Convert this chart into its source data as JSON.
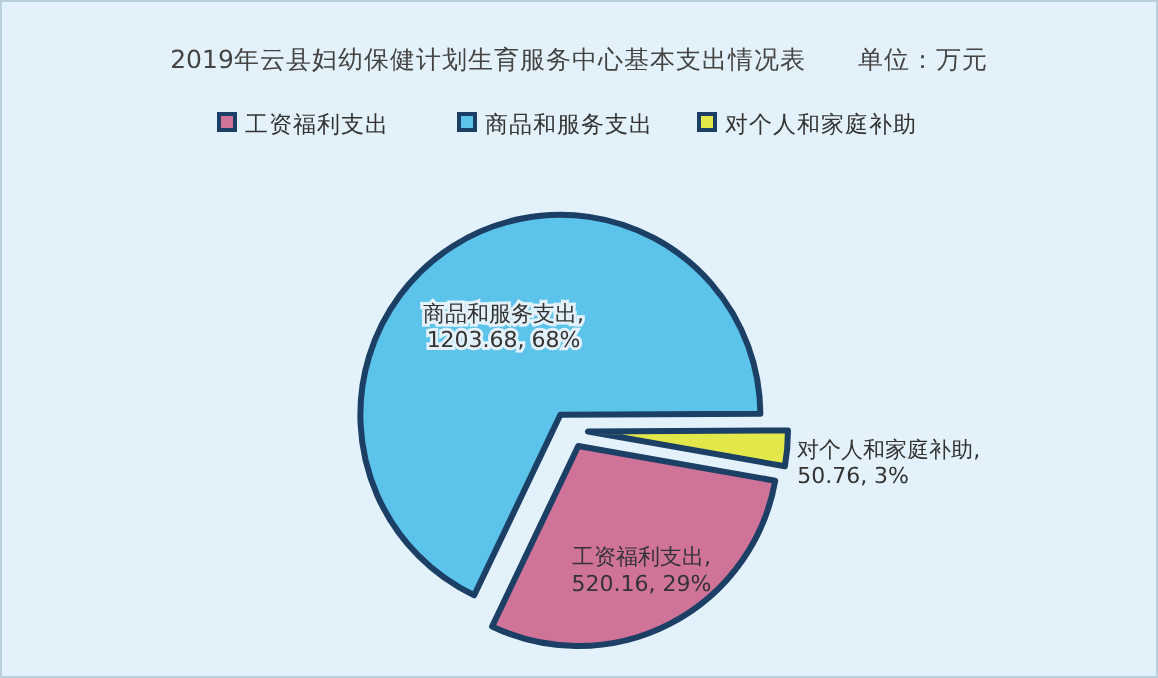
{
  "chart_data": {
    "type": "pie",
    "title": "2019年云县妇幼保健计划生育服务中心基本支出情况表　　单位：万元",
    "categories": [
      "工资福利支出",
      "商品和服务支出",
      "对个人和家庭补助"
    ],
    "values": [
      520.16,
      1203.68,
      50.76
    ],
    "value_labels": [
      "工资福利支出, 520.16, 29%",
      "商品和服务支出, 1203.68, 68%",
      "对个人和家庭补助, 50.76, 3%"
    ],
    "colors": [
      "#d07399",
      "#5cc3ea",
      "#e3e84a"
    ],
    "legend": "top"
  }
}
